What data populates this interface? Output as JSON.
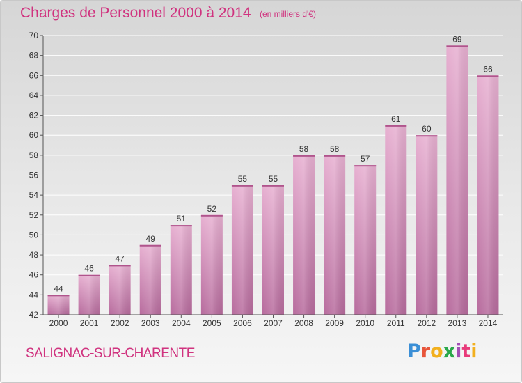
{
  "header": {
    "title": "Charges de Personnel 2000 à 2014",
    "subtitle": "(en milliers d'€)"
  },
  "footer": {
    "commune": "SALIGNAC-SUR-CHARENTE",
    "logo_text": "Proxiti",
    "logo_colors": [
      "#3b8fd6",
      "#e8553a",
      "#f2b01e",
      "#2aa84a",
      "#a24fb6",
      "#e83a7a",
      "#f2b01e"
    ]
  },
  "colors": {
    "bar": "#d890bc",
    "bar_dark": "#b86a9c",
    "bar_light": "#e9b2d3",
    "title": "#d0337f",
    "axis": "#555555",
    "grid": "#ffffff"
  },
  "chart_data": {
    "type": "bar",
    "title": "Charges de Personnel 2000 à 2014",
    "subtitle": "(en milliers d'€)",
    "categories": [
      "2000",
      "2001",
      "2002",
      "2003",
      "2004",
      "2005",
      "2006",
      "2007",
      "2008",
      "2009",
      "2010",
      "2011",
      "2012",
      "2013",
      "2014"
    ],
    "values": [
      44,
      46,
      47,
      49,
      51,
      52,
      55,
      55,
      58,
      58,
      57,
      61,
      60,
      69,
      66
    ],
    "ylim": [
      42,
      70
    ],
    "yticks": [
      42,
      44,
      46,
      48,
      50,
      52,
      54,
      56,
      58,
      60,
      62,
      64,
      66,
      68,
      70
    ],
    "grid": true,
    "data_labels": true
  }
}
